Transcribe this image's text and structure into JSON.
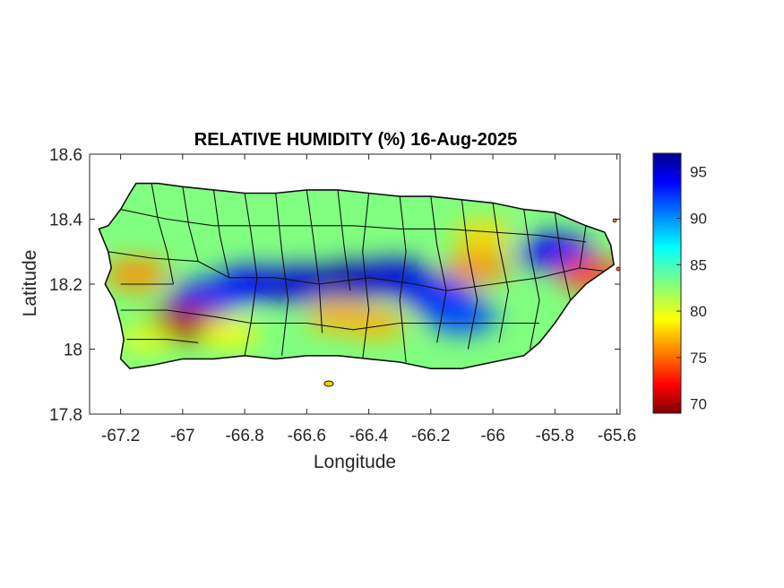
{
  "title": "RELATIVE HUMIDITY (%) 16-Aug-2025",
  "xlabel": "Longitude",
  "ylabel": "Latitude",
  "x_ticks": [
    {
      "value": -67.2,
      "label": "-67.2"
    },
    {
      "value": -67.0,
      "label": "-67"
    },
    {
      "value": -66.8,
      "label": "-66.8"
    },
    {
      "value": -66.6,
      "label": "-66.6"
    },
    {
      "value": -66.4,
      "label": "-66.4"
    },
    {
      "value": -66.2,
      "label": "-66.2"
    },
    {
      "value": -66.0,
      "label": "-66"
    },
    {
      "value": -65.8,
      "label": "-65.8"
    },
    {
      "value": -65.6,
      "label": "-65.6"
    }
  ],
  "y_ticks": [
    {
      "value": 18.6,
      "label": "18.6"
    },
    {
      "value": 18.4,
      "label": "18.4"
    },
    {
      "value": 18.2,
      "label": "18.2"
    },
    {
      "value": 18.0,
      "label": "18"
    },
    {
      "value": 17.8,
      "label": "17.8"
    }
  ],
  "xlim": [
    -67.3,
    -65.59
  ],
  "ylim": [
    17.8,
    18.6
  ],
  "colorbar": {
    "colormap": "jet",
    "range": [
      69,
      97
    ],
    "ticks": [
      {
        "value": 95,
        "label": "95"
      },
      {
        "value": 90,
        "label": "90"
      },
      {
        "value": 85,
        "label": "85"
      },
      {
        "value": 80,
        "label": "80"
      },
      {
        "value": 75,
        "label": "75"
      },
      {
        "value": 70,
        "label": "70"
      }
    ]
  },
  "chart_data": {
    "type": "heatmap",
    "title": "RELATIVE HUMIDITY (%) 16-Aug-2025",
    "xlabel": "Longitude",
    "ylabel": "Latitude",
    "xlim": [
      -67.3,
      -65.59
    ],
    "ylim": [
      17.8,
      18.6
    ],
    "value_range": [
      69,
      97
    ],
    "unit": "%",
    "grid": false,
    "hotspots": [
      {
        "lon": -66.78,
        "lat": 18.2,
        "value": 94
      },
      {
        "lon": -66.62,
        "lat": 18.2,
        "value": 95
      },
      {
        "lon": -66.45,
        "lat": 18.21,
        "value": 96
      },
      {
        "lon": -66.32,
        "lat": 18.22,
        "value": 95
      },
      {
        "lon": -66.92,
        "lat": 18.16,
        "value": 93
      },
      {
        "lon": -66.18,
        "lat": 18.17,
        "value": 93
      },
      {
        "lon": -66.1,
        "lat": 18.1,
        "value": 92
      },
      {
        "lon": -65.8,
        "lat": 18.3,
        "value": 94
      },
      {
        "lon": -66.98,
        "lat": 18.08,
        "value": 70
      },
      {
        "lon": -67.15,
        "lat": 18.23,
        "value": 76
      },
      {
        "lon": -65.68,
        "lat": 18.23,
        "value": 74
      },
      {
        "lon": -66.05,
        "lat": 18.25,
        "value": 76
      },
      {
        "lon": -66.5,
        "lat": 18.1,
        "value": 77
      },
      {
        "lon": -66.38,
        "lat": 18.08,
        "value": 77
      },
      {
        "lon": -66.03,
        "lat": 18.35,
        "value": 78
      },
      {
        "lon": -66.85,
        "lat": 18.05,
        "value": 79
      },
      {
        "lon": -67.12,
        "lat": 18.03,
        "value": 80
      }
    ],
    "background_value": 83
  }
}
